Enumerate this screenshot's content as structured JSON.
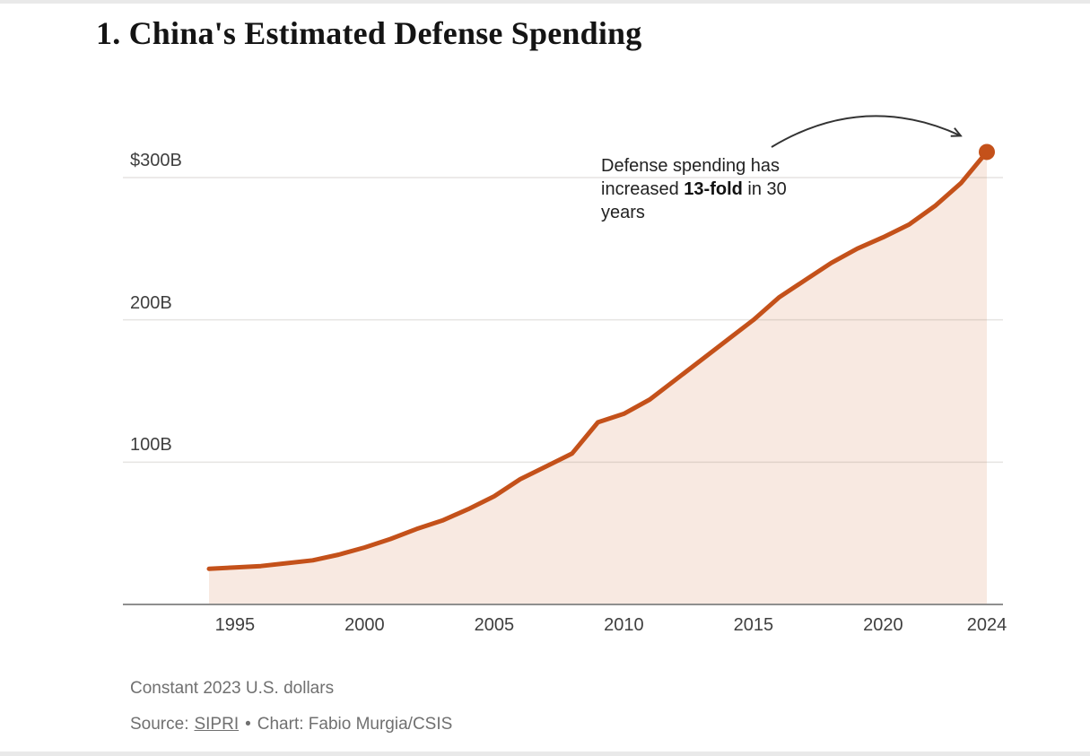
{
  "title": "1. China's Estimated Defense Spending",
  "annotation": {
    "text_before": "Defense spending has increased ",
    "bold": "13-fold",
    "text_after": " in 30 years"
  },
  "footer": {
    "note": "Constant 2023 U.S. dollars",
    "source_prefix": "Source:",
    "source_link": "SIPRI",
    "separator": "•",
    "credit": "Chart: Fabio Murgia/CSIS"
  },
  "colors": {
    "line": "#c4511a",
    "fill": "#f8e9e1",
    "grid": "rgba(115,105,95,0.18)",
    "axis": "#8f8f8f",
    "arrow": "#333333",
    "tick_text": "#3f3f3f",
    "footer_text": "#707070"
  },
  "chart_data": {
    "type": "area",
    "title": "1. China's Estimated Defense Spending",
    "unit_note": "Constant 2023 U.S. dollars",
    "series_name": "China estimated defense spending (billions of constant 2023 USD)",
    "x": [
      1994,
      1995,
      1996,
      1997,
      1998,
      1999,
      2000,
      2001,
      2002,
      2003,
      2004,
      2005,
      2006,
      2007,
      2008,
      2009,
      2010,
      2011,
      2012,
      2013,
      2014,
      2015,
      2016,
      2017,
      2018,
      2019,
      2020,
      2021,
      2022,
      2023,
      2024
    ],
    "values": [
      25,
      26,
      27,
      29,
      31,
      35,
      40,
      46,
      53,
      59,
      67,
      76,
      88,
      97,
      106,
      128,
      134,
      144,
      158,
      172,
      186,
      200,
      216,
      228,
      240,
      250,
      258,
      267,
      280,
      296,
      318
    ],
    "xlim": [
      1994,
      2024
    ],
    "ylim": [
      0,
      300
    ],
    "x_ticks": [
      {
        "label": "1995",
        "year": 1995
      },
      {
        "label": "2000",
        "year": 2000
      },
      {
        "label": "2005",
        "year": 2005
      },
      {
        "label": "2010",
        "year": 2010
      },
      {
        "label": "2015",
        "year": 2015
      },
      {
        "label": "2020",
        "year": 2020
      },
      {
        "label": "2024",
        "year": 2024
      }
    ],
    "y_ticks": [
      {
        "label": "$300B",
        "value": 300
      },
      {
        "label": "200B",
        "value": 200
      },
      {
        "label": "100B",
        "value": 100
      }
    ],
    "grid": "horizontal",
    "legend": "none",
    "endpoint_marker_year": 2024,
    "endpoint_marker_value": 318
  }
}
